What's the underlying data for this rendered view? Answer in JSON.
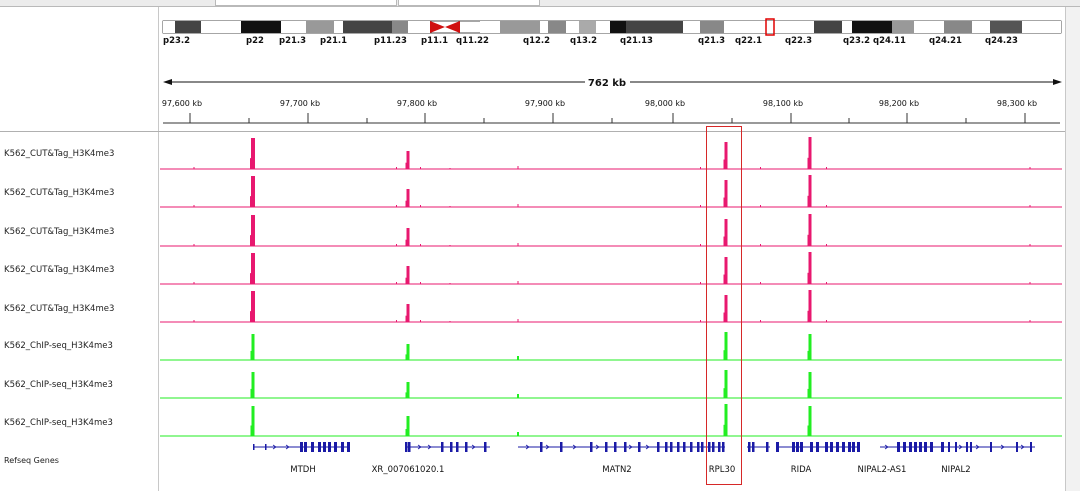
{
  "ideogram": {
    "bands": [
      "p23.2",
      "p22",
      "p21.3",
      "p21.1",
      "p11.23",
      "p11.1",
      "q11.22",
      "q12.2",
      "q13.2",
      "q21.13",
      "q21.3",
      "q22.1",
      "q22.3",
      "q23.2",
      "q24.11",
      "q24.21",
      "q24.23"
    ]
  },
  "ruler": {
    "span_label": "762 kb",
    "ticks": [
      "97,600 kb",
      "97,700 kb",
      "97,800 kb",
      "97,900 kb",
      "98,000 kb",
      "98,100 kb",
      "98,200 kb",
      "98,300 kb"
    ]
  },
  "tracks": [
    {
      "name": "K562_CUT&Tag_H3K4me3",
      "color": "#e8186f"
    },
    {
      "name": "K562_CUT&Tag_H3K4me3",
      "color": "#e8186f"
    },
    {
      "name": "K562_CUT&Tag_H3K4me3",
      "color": "#e8186f"
    },
    {
      "name": "K562_CUT&Tag_H3K4me3",
      "color": "#e8186f"
    },
    {
      "name": "K562_CUT&Tag_H3K4me3",
      "color": "#e8186f"
    },
    {
      "name": "K562_ChIP-seq_H3K4me3",
      "color": "#22ee22"
    },
    {
      "name": "K562_ChIP-seq_H3K4me3",
      "color": "#22ee22"
    },
    {
      "name": "K562_ChIP-seq_H3K4me3",
      "color": "#22ee22"
    }
  ],
  "refseq": {
    "label": "Refseq Genes",
    "color": "#1a1aa6",
    "genes": [
      "MTDH",
      "XR_007061020.1",
      "MATN2",
      "RPL30",
      "RIDA",
      "NIPAL2-AS1",
      "NIPAL2"
    ]
  },
  "highlight_color": "#d62828"
}
